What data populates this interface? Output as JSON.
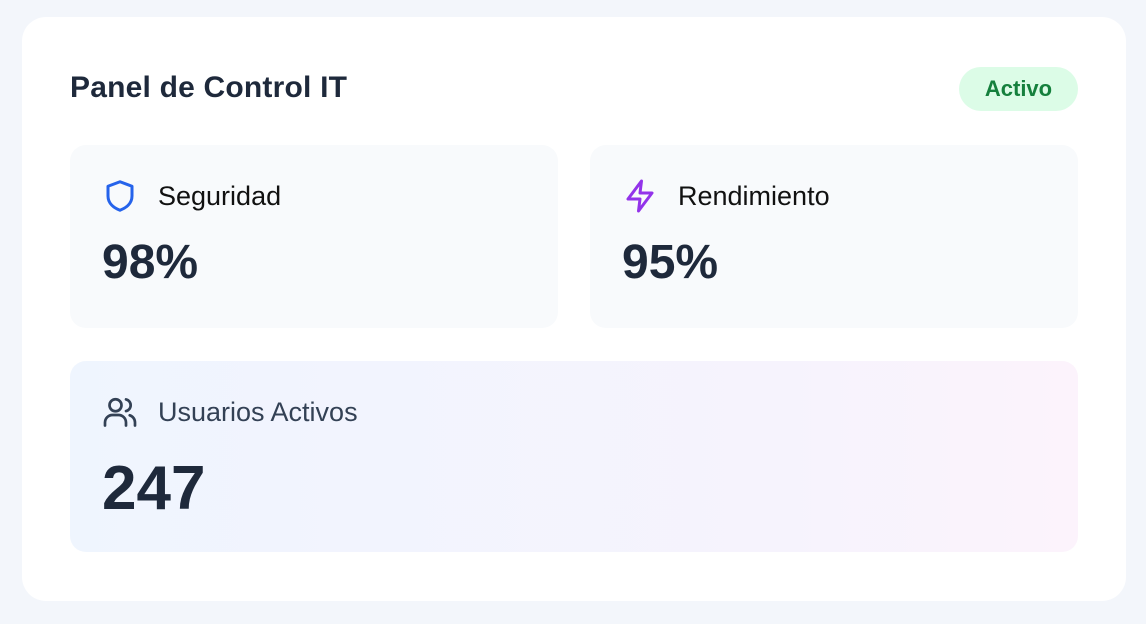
{
  "header": {
    "title": "Panel de Control IT",
    "status": "Activo",
    "status_color": "#15803d"
  },
  "metrics": [
    {
      "label": "Seguridad",
      "value": "98%",
      "icon": "shield-icon",
      "color": "#2563eb"
    },
    {
      "label": "Rendimiento",
      "value": "95%",
      "icon": "zap-icon",
      "color": "#9333ea"
    }
  ],
  "users": {
    "label": "Usuarios Activos",
    "value": "247",
    "icon": "users-icon"
  }
}
